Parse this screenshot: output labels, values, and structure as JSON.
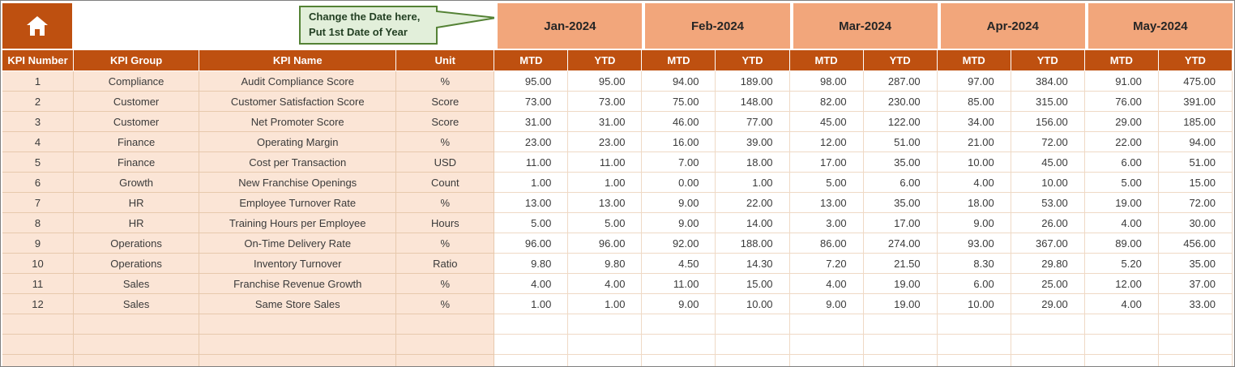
{
  "callout": {
    "line1": "Change the Date here,",
    "line2": "Put 1st Date of Year"
  },
  "months": [
    "Jan-2024",
    "Feb-2024",
    "Mar-2024",
    "Apr-2024",
    "May-2024"
  ],
  "columns": {
    "mtd": "MTD",
    "ytd": "YTD"
  },
  "left_headers": [
    "KPI Number",
    "KPI Group",
    "KPI Name",
    "Unit"
  ],
  "rows": [
    {
      "num": "1",
      "group": "Compliance",
      "name": "Audit Compliance Score",
      "unit": "%",
      "values": [
        "95.00",
        "95.00",
        "94.00",
        "189.00",
        "98.00",
        "287.00",
        "97.00",
        "384.00",
        "91.00",
        "475.00"
      ]
    },
    {
      "num": "2",
      "group": "Customer",
      "name": "Customer Satisfaction Score",
      "unit": "Score",
      "values": [
        "73.00",
        "73.00",
        "75.00",
        "148.00",
        "82.00",
        "230.00",
        "85.00",
        "315.00",
        "76.00",
        "391.00"
      ]
    },
    {
      "num": "3",
      "group": "Customer",
      "name": "Net Promoter Score",
      "unit": "Score",
      "values": [
        "31.00",
        "31.00",
        "46.00",
        "77.00",
        "45.00",
        "122.00",
        "34.00",
        "156.00",
        "29.00",
        "185.00"
      ]
    },
    {
      "num": "4",
      "group": "Finance",
      "name": "Operating Margin",
      "unit": "%",
      "values": [
        "23.00",
        "23.00",
        "16.00",
        "39.00",
        "12.00",
        "51.00",
        "21.00",
        "72.00",
        "22.00",
        "94.00"
      ]
    },
    {
      "num": "5",
      "group": "Finance",
      "name": "Cost per Transaction",
      "unit": "USD",
      "values": [
        "11.00",
        "11.00",
        "7.00",
        "18.00",
        "17.00",
        "35.00",
        "10.00",
        "45.00",
        "6.00",
        "51.00"
      ]
    },
    {
      "num": "6",
      "group": "Growth",
      "name": "New Franchise Openings",
      "unit": "Count",
      "values": [
        "1.00",
        "1.00",
        "0.00",
        "1.00",
        "5.00",
        "6.00",
        "4.00",
        "10.00",
        "5.00",
        "15.00"
      ]
    },
    {
      "num": "7",
      "group": "HR",
      "name": "Employee Turnover Rate",
      "unit": "%",
      "values": [
        "13.00",
        "13.00",
        "9.00",
        "22.00",
        "13.00",
        "35.00",
        "18.00",
        "53.00",
        "19.00",
        "72.00"
      ]
    },
    {
      "num": "8",
      "group": "HR",
      "name": "Training Hours per Employee",
      "unit": "Hours",
      "values": [
        "5.00",
        "5.00",
        "9.00",
        "14.00",
        "3.00",
        "17.00",
        "9.00",
        "26.00",
        "4.00",
        "30.00"
      ]
    },
    {
      "num": "9",
      "group": "Operations",
      "name": "On-Time Delivery Rate",
      "unit": "%",
      "values": [
        "96.00",
        "96.00",
        "92.00",
        "188.00",
        "86.00",
        "274.00",
        "93.00",
        "367.00",
        "89.00",
        "456.00"
      ]
    },
    {
      "num": "10",
      "group": "Operations",
      "name": "Inventory Turnover",
      "unit": "Ratio",
      "values": [
        "9.80",
        "9.80",
        "4.50",
        "14.30",
        "7.20",
        "21.50",
        "8.30",
        "29.80",
        "5.20",
        "35.00"
      ]
    },
    {
      "num": "11",
      "group": "Sales",
      "name": "Franchise Revenue Growth",
      "unit": "%",
      "values": [
        "4.00",
        "4.00",
        "11.00",
        "15.00",
        "4.00",
        "19.00",
        "6.00",
        "25.00",
        "12.00",
        "37.00"
      ]
    },
    {
      "num": "12",
      "group": "Sales",
      "name": "Same Store Sales",
      "unit": "%",
      "values": [
        "1.00",
        "1.00",
        "9.00",
        "10.00",
        "9.00",
        "19.00",
        "10.00",
        "29.00",
        "4.00",
        "33.00"
      ]
    }
  ],
  "empty_row_count": 3,
  "icons": {
    "home": "home-icon"
  },
  "colors": {
    "header_bg": "#be5010",
    "header_text": "#ffffff",
    "month_bg": "#f2a67b",
    "left_col_bg": "#fbe5d6",
    "grid_line": "#efd9c5",
    "grid_line_dark": "#e7c9ad",
    "body_text": "#3a3a3a",
    "callout_bg": "#e2efda",
    "callout_border": "#548235",
    "callout_text": "#234023"
  }
}
